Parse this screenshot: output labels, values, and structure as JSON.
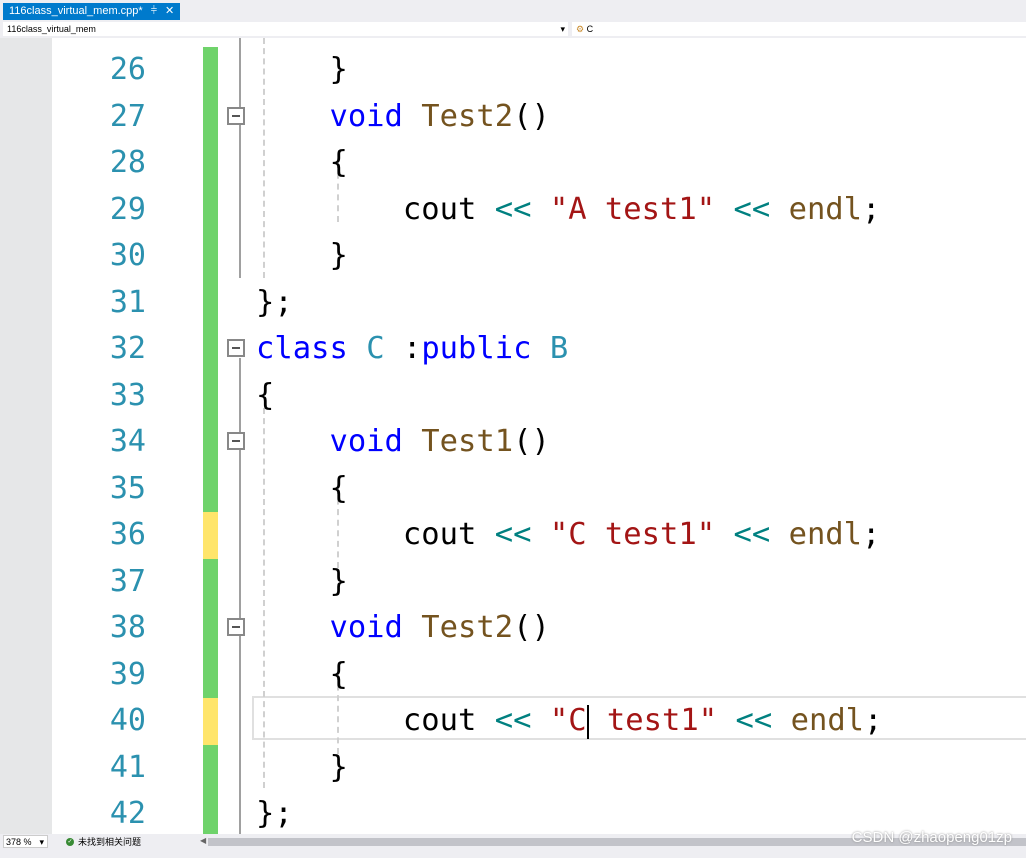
{
  "tab": {
    "title": "116class_virtual_mem.cpp*",
    "pin": "⫩",
    "close": "✕"
  },
  "nav": {
    "project": "116class_virtual_mem",
    "scope": "C"
  },
  "editor": {
    "lines": [
      {
        "n": "26",
        "change": "green",
        "fold": false,
        "tokens": [
          [
            "    }",
            ""
          ]
        ]
      },
      {
        "n": "27",
        "change": "green",
        "fold": true,
        "tokens": [
          [
            "    ",
            ""
          ],
          [
            "void",
            "kw"
          ],
          [
            " ",
            ""
          ],
          [
            "Test2",
            "fn"
          ],
          [
            "()",
            ""
          ]
        ]
      },
      {
        "n": "28",
        "change": "green",
        "fold": false,
        "tokens": [
          [
            "    {",
            ""
          ]
        ]
      },
      {
        "n": "29",
        "change": "green",
        "fold": false,
        "tokens": [
          [
            "        cout ",
            ""
          ],
          [
            "<<",
            "op"
          ],
          [
            " ",
            ""
          ],
          [
            "\"A test1\"",
            "str"
          ],
          [
            " ",
            ""
          ],
          [
            "<<",
            "op"
          ],
          [
            " ",
            ""
          ],
          [
            "endl",
            "fn"
          ],
          [
            ";",
            ""
          ]
        ]
      },
      {
        "n": "30",
        "change": "green",
        "fold": false,
        "tokens": [
          [
            "    }",
            ""
          ]
        ]
      },
      {
        "n": "31",
        "change": "green",
        "fold": false,
        "tokens": [
          [
            "};",
            ""
          ]
        ]
      },
      {
        "n": "32",
        "change": "green",
        "fold": true,
        "tokens": [
          [
            "class",
            "kw"
          ],
          [
            " ",
            ""
          ],
          [
            "C",
            "cls"
          ],
          [
            " :",
            ""
          ],
          [
            "public",
            "kw"
          ],
          [
            " ",
            ""
          ],
          [
            "B",
            "cls"
          ]
        ]
      },
      {
        "n": "33",
        "change": "green",
        "fold": false,
        "tokens": [
          [
            "{",
            ""
          ]
        ]
      },
      {
        "n": "34",
        "change": "green",
        "fold": true,
        "tokens": [
          [
            "    ",
            ""
          ],
          [
            "void",
            "kw"
          ],
          [
            " ",
            ""
          ],
          [
            "Test1",
            "fn"
          ],
          [
            "()",
            ""
          ]
        ]
      },
      {
        "n": "35",
        "change": "green",
        "fold": false,
        "tokens": [
          [
            "    {",
            ""
          ]
        ]
      },
      {
        "n": "36",
        "change": "yellow",
        "fold": false,
        "tokens": [
          [
            "        cout ",
            ""
          ],
          [
            "<<",
            "op"
          ],
          [
            " ",
            ""
          ],
          [
            "\"C test1\"",
            "str"
          ],
          [
            " ",
            ""
          ],
          [
            "<<",
            "op"
          ],
          [
            " ",
            ""
          ],
          [
            "endl",
            "fn"
          ],
          [
            ";",
            ""
          ]
        ]
      },
      {
        "n": "37",
        "change": "green",
        "fold": false,
        "tokens": [
          [
            "    }",
            ""
          ]
        ]
      },
      {
        "n": "38",
        "change": "green",
        "fold": true,
        "tokens": [
          [
            "    ",
            ""
          ],
          [
            "void",
            "kw"
          ],
          [
            " ",
            ""
          ],
          [
            "Test2",
            "fn"
          ],
          [
            "()",
            ""
          ]
        ]
      },
      {
        "n": "39",
        "change": "green",
        "fold": false,
        "tokens": [
          [
            "    {",
            ""
          ]
        ]
      },
      {
        "n": "40",
        "change": "yellow",
        "fold": false,
        "caret": true,
        "tokens": [
          [
            "        cout ",
            ""
          ],
          [
            "<<",
            "op"
          ],
          [
            " ",
            ""
          ],
          [
            "\"C",
            "str"
          ],
          [
            "|caret",
            ""
          ],
          [
            " test1\"",
            "str"
          ],
          [
            " ",
            ""
          ],
          [
            "<<",
            "op"
          ],
          [
            " ",
            ""
          ],
          [
            "endl",
            "fn"
          ],
          [
            ";",
            ""
          ]
        ]
      },
      {
        "n": "41",
        "change": "green",
        "fold": false,
        "tokens": [
          [
            "    }",
            ""
          ]
        ]
      },
      {
        "n": "42",
        "change": "green",
        "fold": false,
        "tokens": [
          [
            "};",
            ""
          ]
        ]
      }
    ]
  },
  "colors": {
    "green": "#6fd36b",
    "yellow": "#ffe56b"
  },
  "status": {
    "zoom": "378 %",
    "issues": "未找到相关问题"
  },
  "watermark": "CSDN @zhaopeng01zp"
}
